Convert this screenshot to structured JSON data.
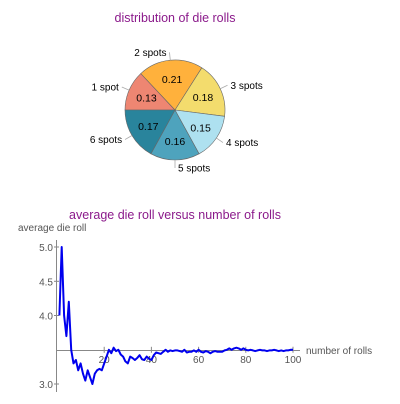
{
  "chart_data": [
    {
      "type": "pie",
      "title": "distribution of die rolls",
      "categories": [
        "1 spot",
        "2 spots",
        "3 spots",
        "4 spots",
        "5 spots",
        "6 spots"
      ],
      "values": [
        0.13,
        0.21,
        0.18,
        0.15,
        0.16,
        0.17
      ],
      "value_labels": [
        "0.13",
        "0.21",
        "0.18",
        "0.15",
        "0.16",
        "0.17"
      ],
      "colors": [
        "#ee8672",
        "#ffb13c",
        "#f3dc6d",
        "#aee1f0",
        "#4ea3bd",
        "#29849c"
      ]
    },
    {
      "type": "line",
      "title": "average die roll versus number of rolls",
      "xlabel": "number of rolls",
      "ylabel": "average die roll",
      "xlim": [
        0,
        100
      ],
      "ylim": [
        2.9,
        5.1
      ],
      "x_ticks": [
        20,
        40,
        60,
        80,
        100
      ],
      "x_tick_labels": [
        "20",
        "40",
        "60",
        "80",
        "100"
      ],
      "y_ticks": [
        3.0,
        4.0,
        4.5,
        5.0
      ],
      "y_tick_labels": [
        "3.0",
        "4.0",
        "4.5",
        "5.0"
      ],
      "axis_crossing_y": 3.5,
      "grid": false,
      "color": "#0000ee",
      "series": [
        {
          "x": [
            1,
            2,
            3,
            4,
            5,
            6,
            7,
            8,
            9,
            10,
            11,
            12,
            13,
            14,
            15,
            16,
            17,
            18,
            19,
            20,
            21,
            22,
            23,
            24,
            25,
            26,
            27,
            28,
            29,
            30,
            31,
            32,
            33,
            34,
            35,
            36,
            37,
            38,
            39,
            40,
            41,
            42,
            43,
            44,
            45,
            46,
            47,
            48,
            49,
            50,
            51,
            52,
            53,
            54,
            55,
            56,
            57,
            58,
            59,
            60,
            61,
            62,
            63,
            64,
            65,
            66,
            67,
            68,
            69,
            70,
            71,
            72,
            73,
            74,
            75,
            76,
            77,
            78,
            79,
            80,
            81,
            82,
            83,
            84,
            85,
            86,
            87,
            88,
            89,
            90,
            91,
            92,
            93,
            94,
            95,
            96,
            97,
            98,
            99,
            100
          ],
          "y": [
            4.0,
            5.0,
            4.0,
            3.7,
            4.2,
            3.5,
            3.3,
            3.35,
            3.2,
            3.3,
            3.15,
            3.05,
            3.2,
            3.1,
            3.0,
            3.15,
            3.2,
            3.22,
            3.2,
            3.3,
            3.4,
            3.5,
            3.45,
            3.53,
            3.48,
            3.5,
            3.43,
            3.4,
            3.33,
            3.3,
            3.4,
            3.38,
            3.35,
            3.38,
            3.42,
            3.36,
            3.35,
            3.4,
            3.37,
            3.35,
            3.42,
            3.46,
            3.45,
            3.44,
            3.47,
            3.5,
            3.47,
            3.49,
            3.48,
            3.49,
            3.49,
            3.48,
            3.47,
            3.5,
            3.46,
            3.47,
            3.47,
            3.49,
            3.47,
            3.5,
            3.47,
            3.46,
            3.48,
            3.47,
            3.45,
            3.47,
            3.48,
            3.47,
            3.47,
            3.47,
            3.49,
            3.5,
            3.52,
            3.5,
            3.52,
            3.53,
            3.52,
            3.5,
            3.52,
            3.5,
            3.49,
            3.5,
            3.49,
            3.48,
            3.49,
            3.5,
            3.49,
            3.49,
            3.48,
            3.49,
            3.49,
            3.5,
            3.49,
            3.48,
            3.49,
            3.48,
            3.49,
            3.49,
            3.5,
            3.5
          ]
        }
      ]
    }
  ]
}
